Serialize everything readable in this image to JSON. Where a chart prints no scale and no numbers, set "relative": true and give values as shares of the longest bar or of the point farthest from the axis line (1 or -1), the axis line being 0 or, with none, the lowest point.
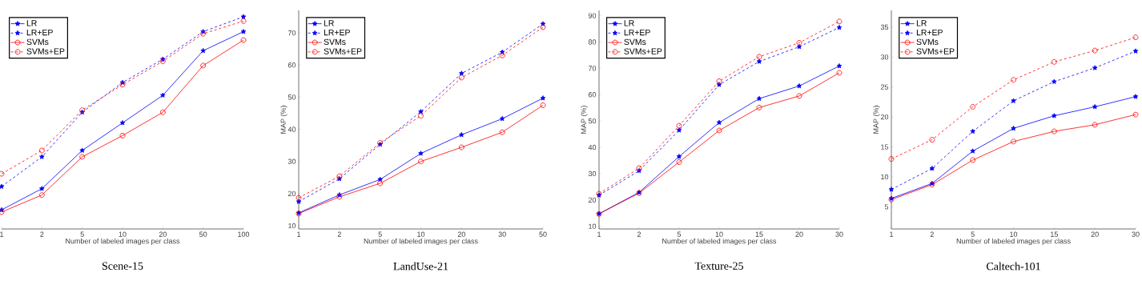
{
  "chart_data": [
    {
      "type": "line",
      "title": "Scene-15",
      "xlabel": "Number of labeled images per class",
      "relative": true,
      "tick_labels": "x",
      "legend": "top left",
      "categories": [
        "1",
        "2",
        "5",
        "10",
        "20",
        "50",
        "100"
      ],
      "series": [
        {
          "name": "LR",
          "color": "#0000ff",
          "marker": "star",
          "line_style": "solid",
          "values": [
            0.09,
            0.19,
            0.37,
            0.5,
            0.63,
            0.84,
            0.93
          ]
        },
        {
          "name": "LR+EP",
          "color": "#0000ff",
          "marker": "star",
          "line_style": "dashed",
          "values": [
            0.2,
            0.34,
            0.55,
            0.69,
            0.8,
            0.93,
            1
          ]
        },
        {
          "name": "SVMs",
          "color": "#ff0000",
          "marker": "circle",
          "line_style": "solid",
          "values": [
            0.08,
            0.16,
            0.34,
            0.44,
            0.55,
            0.77,
            0.89
          ]
        },
        {
          "name": "SVMs+EP",
          "color": "#ff0000",
          "marker": "circle",
          "line_style": "dashed",
          "values": [
            0.26,
            0.37,
            0.56,
            0.68,
            0.79,
            0.92,
            0.98
          ]
        }
      ]
    },
    {
      "type": "line",
      "title": "LandUse-21",
      "xlabel": "Number of labeled images per class",
      "ylabel": "MAP (%)",
      "legend": "top left",
      "categories": [
        "1",
        "2",
        "5",
        "10",
        "20",
        "30",
        "50"
      ],
      "ylim": [
        9,
        77
      ],
      "yticks": [
        10,
        20,
        30,
        40,
        50,
        60,
        70
      ],
      "series": [
        {
          "name": "LR",
          "color": "#0000ff",
          "marker": "star",
          "line_style": "solid",
          "values": [
            14.0,
            19.6,
            24.4,
            32.5,
            38.3,
            43.3,
            49.7
          ]
        },
        {
          "name": "LR+EP",
          "color": "#0000ff",
          "marker": "star",
          "line_style": "dashed",
          "values": [
            17.5,
            24.6,
            35.3,
            45.5,
            57.4,
            64.0,
            72.8
          ]
        },
        {
          "name": "SVMs",
          "color": "#ff0000",
          "marker": "circle",
          "line_style": "solid",
          "values": [
            13.8,
            19.0,
            23.2,
            30.0,
            34.4,
            39.1,
            47.5
          ]
        },
        {
          "name": "SVMs+EP",
          "color": "#ff0000",
          "marker": "circle",
          "line_style": "dashed",
          "values": [
            18.7,
            25.4,
            35.8,
            44.2,
            56.1,
            63.0,
            71.8
          ]
        }
      ]
    },
    {
      "type": "line",
      "title": "Texture-25",
      "xlabel": "Number of labeled images per class",
      "ylabel": "MAP (%)",
      "legend": "top left",
      "categories": [
        "1",
        "2",
        "5",
        "10",
        "15",
        "20",
        "30"
      ],
      "ylim": [
        9,
        92
      ],
      "yticks": [
        10,
        20,
        30,
        40,
        50,
        60,
        70,
        80,
        90
      ],
      "series": [
        {
          "name": "LR",
          "color": "#0000ff",
          "marker": "star",
          "line_style": "solid",
          "values": [
            14.8,
            22.9,
            36.5,
            49.4,
            58.5,
            63.3,
            70.9
          ]
        },
        {
          "name": "LR+EP",
          "color": "#0000ff",
          "marker": "star",
          "line_style": "dashed",
          "values": [
            21.8,
            31.1,
            46.5,
            63.8,
            72.6,
            78.2,
            85.5
          ]
        },
        {
          "name": "SVMs",
          "color": "#ff0000",
          "marker": "circle",
          "line_style": "solid",
          "values": [
            14.7,
            22.6,
            34.4,
            46.4,
            55.1,
            59.5,
            68.3
          ]
        },
        {
          "name": "SVMs+EP",
          "color": "#ff0000",
          "marker": "circle",
          "line_style": "dashed",
          "values": [
            22.4,
            32.1,
            48.2,
            65.1,
            74.4,
            79.7,
            87.8
          ]
        }
      ]
    },
    {
      "type": "line",
      "title": "Caltech-101",
      "xlabel": "Number of labeled images per class",
      "ylabel": "MAP (%)",
      "legend": "top left",
      "categories": [
        "1",
        "2",
        "5",
        "10",
        "15",
        "20",
        "30"
      ],
      "ylim": [
        1.3,
        37.8
      ],
      "yticks": [
        5,
        10,
        15,
        20,
        25,
        30,
        35
      ],
      "series": [
        {
          "name": "LR",
          "color": "#0000ff",
          "marker": "star",
          "line_style": "solid",
          "values": [
            6.4,
            8.9,
            14.3,
            18.1,
            20.2,
            21.7,
            23.4
          ]
        },
        {
          "name": "LR+EP",
          "color": "#0000ff",
          "marker": "star",
          "line_style": "dashed",
          "values": [
            7.9,
            11.4,
            17.6,
            22.7,
            25.9,
            28.2,
            31.0
          ]
        },
        {
          "name": "SVMs",
          "color": "#ff0000",
          "marker": "circle",
          "line_style": "solid",
          "values": [
            6.2,
            8.7,
            12.8,
            15.9,
            17.6,
            18.7,
            20.4
          ]
        },
        {
          "name": "SVMs+EP",
          "color": "#ff0000",
          "marker": "circle",
          "line_style": "dashed",
          "values": [
            13.0,
            16.2,
            21.7,
            26.2,
            29.2,
            31.1,
            33.3
          ]
        }
      ]
    }
  ]
}
